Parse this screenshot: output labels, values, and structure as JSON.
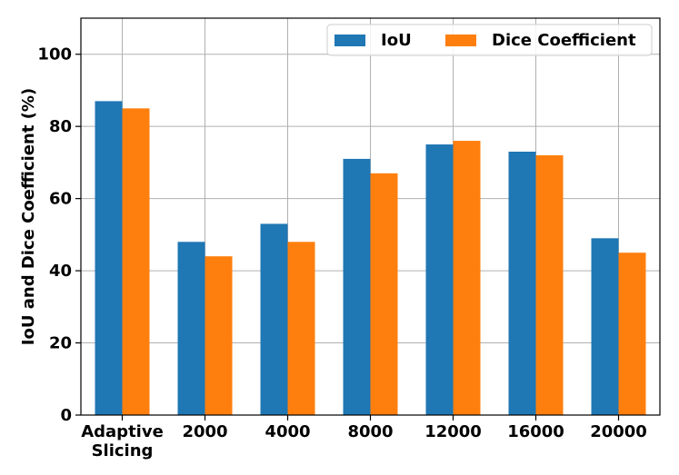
{
  "chart_data": {
    "type": "bar",
    "title": "",
    "xlabel": "",
    "ylabel": "IoU and Dice Coefficient (%)",
    "categories": [
      "Adaptive\nSlicing",
      "2000",
      "4000",
      "8000",
      "12000",
      "16000",
      "20000"
    ],
    "series": [
      {
        "name": "IoU",
        "color": "#1f77b4",
        "values": [
          87,
          48,
          53,
          71,
          75,
          73,
          49
        ]
      },
      {
        "name": "Dice Coefficient",
        "color": "#ff7f0e",
        "values": [
          85,
          44,
          48,
          67,
          76,
          72,
          45
        ]
      }
    ],
    "ylim": [
      0,
      110
    ],
    "yticks": [
      0,
      20,
      40,
      60,
      80,
      100
    ],
    "grid": true,
    "legend_position": "top-right"
  }
}
